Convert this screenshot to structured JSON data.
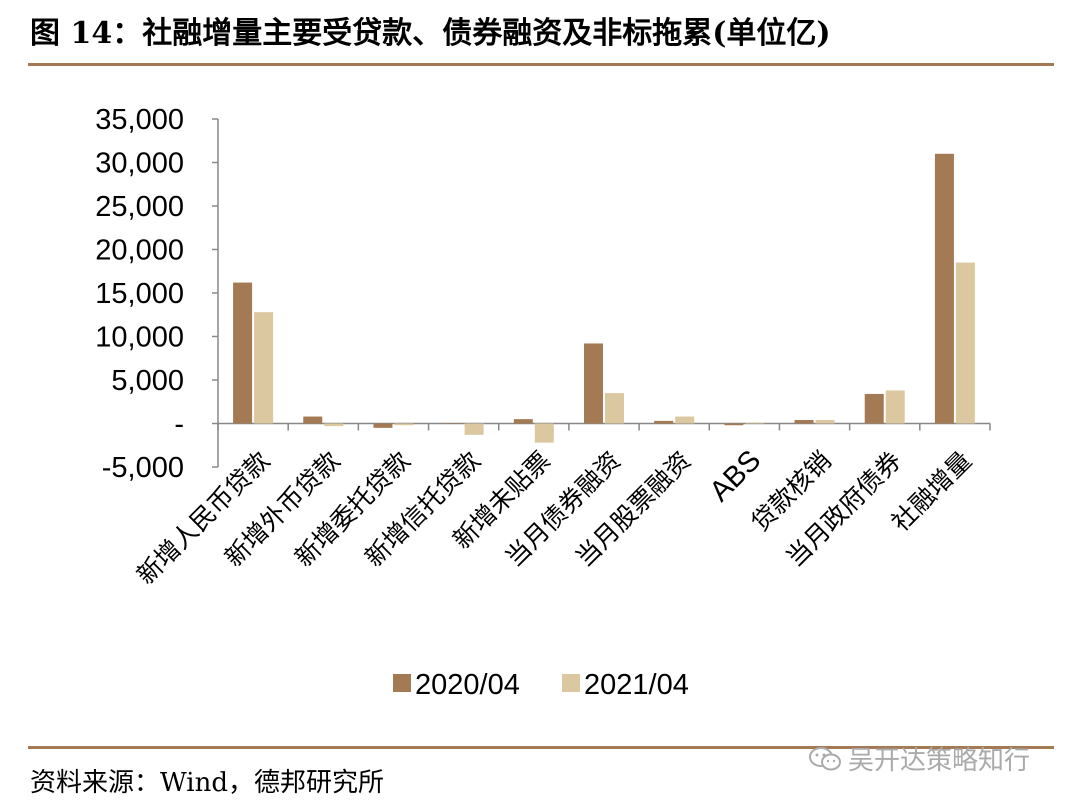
{
  "header": {
    "title": "图 14：社融增量主要受贷款、债券融资及非标拖累(单位亿)"
  },
  "footer": {
    "source": "资料来源：Wind，德邦研究所"
  },
  "watermark": {
    "text": "吴开达策略知行",
    "icon": "wechat-icon"
  },
  "colors": {
    "series_2020": "#a47a54",
    "series_2021": "#dcc8a0",
    "rule": "#a47a54",
    "axis": "#888888"
  },
  "chart_data": {
    "type": "bar",
    "title": "",
    "xlabel": "",
    "ylabel": "",
    "ylim": [
      -5000,
      35000
    ],
    "yticks": [
      35000,
      30000,
      25000,
      20000,
      15000,
      10000,
      5000,
      0,
      -5000
    ],
    "ytick_labels": [
      "35,000",
      "30,000",
      "25,000",
      "20,000",
      "15,000",
      "10,000",
      "5,000",
      "-",
      "-5,000"
    ],
    "categories": [
      "新增人民币贷款",
      "新增外币贷款",
      "新增委托贷款",
      "新增信托贷款",
      "新增未贴票",
      "当月债券融资",
      "当月股票融资",
      "ABS",
      "贷款核销",
      "当月政府债券",
      "社融增量"
    ],
    "series": [
      {
        "name": "2020/04",
        "values": [
          16200,
          800,
          -500,
          0,
          500,
          9200,
          300,
          -200,
          400,
          3400,
          31000
        ]
      },
      {
        "name": "2021/04",
        "values": [
          12800,
          -300,
          -200,
          -1300,
          -2200,
          3500,
          800,
          100,
          400,
          3800,
          18500
        ]
      }
    ],
    "legend": {
      "placement": "bottom-center"
    },
    "grid": false
  }
}
